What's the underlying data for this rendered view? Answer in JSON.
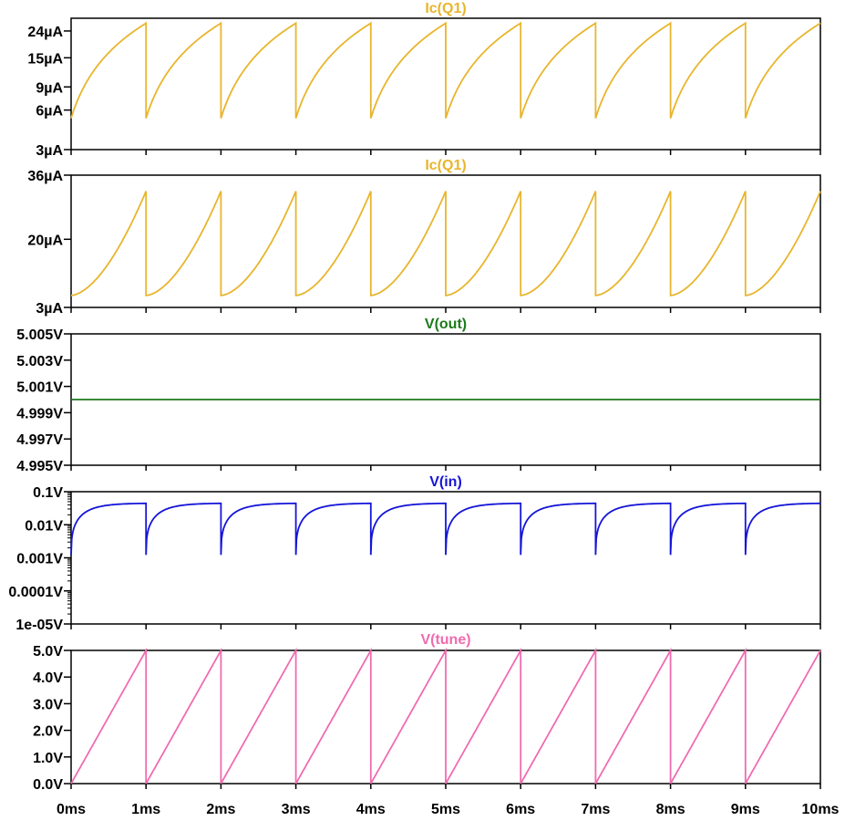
{
  "chart_data": [
    {
      "type": "line",
      "title": "Ic(Q1)",
      "color": "#e8b52c",
      "yscale": "log",
      "ylim": [
        3,
        30
      ],
      "yticks": [
        "24µA",
        "15µA",
        "9µA",
        "6µA",
        "3µA"
      ],
      "ytick_values": [
        24,
        15,
        9,
        6,
        3
      ],
      "unit": "µA",
      "waveform": "sawtooth_linear",
      "period_ms": 1,
      "min": 5.2,
      "max": 27.5,
      "xlim": [
        0,
        10
      ]
    },
    {
      "type": "line",
      "title": "Ic(Q1)",
      "color": "#e8b52c",
      "yscale": "linear",
      "ylim": [
        3,
        36
      ],
      "yticks": [
        "36µA",
        "20µA",
        "3µA"
      ],
      "ytick_values": [
        36,
        20,
        3
      ],
      "unit": "µA",
      "waveform": "sawtooth_exponential",
      "period_ms": 1,
      "min": 6,
      "max": 32,
      "xlim": [
        0,
        10
      ]
    },
    {
      "type": "line",
      "title": "V(out)",
      "color": "#1b7a1b",
      "yscale": "linear",
      "ylim": [
        4.995,
        5.005
      ],
      "yticks": [
        "5.005V",
        "5.003V",
        "5.001V",
        "4.999V",
        "4.997V",
        "4.995V"
      ],
      "ytick_values": [
        5.005,
        5.003,
        5.001,
        4.999,
        4.997,
        4.995
      ],
      "unit": "V",
      "waveform": "constant",
      "value": 5.0,
      "xlim": [
        0,
        10
      ]
    },
    {
      "type": "line",
      "title": "V(in)",
      "color": "#1515d8",
      "yscale": "log",
      "ylim": [
        1e-05,
        0.1
      ],
      "yticks": [
        "0.1V",
        "0.01V",
        "0.001V",
        "0.0001V",
        "1e-05V"
      ],
      "ytick_values": [
        0.1,
        0.01,
        0.001,
        0.0001,
        1e-05
      ],
      "unit": "V",
      "waveform": "sawtooth_log",
      "period_ms": 1,
      "min": 0.0012,
      "max": 0.045,
      "xlim": [
        0,
        10
      ]
    },
    {
      "type": "line",
      "title": "V(tune)",
      "color": "#f06bb0",
      "yscale": "linear",
      "ylim": [
        0,
        5
      ],
      "yticks": [
        "5.0V",
        "4.0V",
        "3.0V",
        "2.0V",
        "1.0V",
        "0.0V"
      ],
      "ytick_values": [
        5,
        4,
        3,
        2,
        1,
        0
      ],
      "unit": "V",
      "waveform": "sawtooth_linear",
      "period_ms": 1,
      "min": 0,
      "max": 5,
      "xlim": [
        0,
        10
      ]
    }
  ],
  "xaxis": {
    "ticks": [
      "0ms",
      "1ms",
      "2ms",
      "3ms",
      "4ms",
      "5ms",
      "6ms",
      "7ms",
      "8ms",
      "9ms",
      "10ms"
    ],
    "tick_values": [
      0,
      1,
      2,
      3,
      4,
      5,
      6,
      7,
      8,
      9,
      10
    ],
    "unit": "ms",
    "range": [
      0,
      10
    ]
  }
}
